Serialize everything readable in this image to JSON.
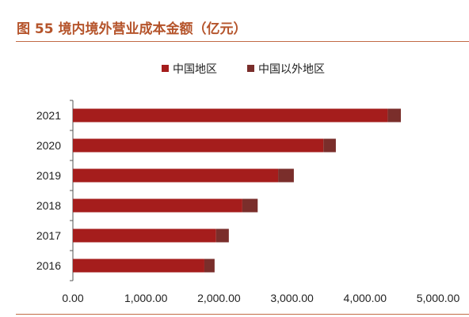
{
  "title": "图 55 境内境外营业成本金额（亿元）",
  "colors": {
    "domestic": "#a51d1c",
    "overseas": "#7a2e2b",
    "rule": "#c26a45",
    "title": "#b5542b"
  },
  "chart_data": {
    "type": "bar",
    "orientation": "horizontal",
    "stacked": true,
    "categories": [
      "2021",
      "2020",
      "2019",
      "2018",
      "2017",
      "2016"
    ],
    "series": [
      {
        "name": "中国地区",
        "values": [
          4310,
          3430,
          2810,
          2320,
          1960,
          1800
        ]
      },
      {
        "name": "中国以外地区",
        "values": [
          180,
          170,
          215,
          210,
          175,
          140
        ]
      }
    ],
    "xlim": [
      0,
      5000
    ],
    "xticks": [
      "0.00",
      "1,000.00",
      "2,000.00",
      "3,000.00",
      "4,000.00",
      "5,000.00"
    ],
    "legend": "top-center",
    "grid": false
  }
}
